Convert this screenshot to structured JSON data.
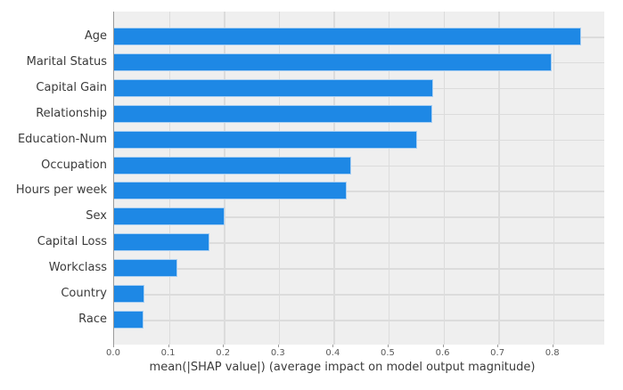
{
  "figure": {
    "background": "#ffffff",
    "plot_background": "#efefef",
    "grid_color": "#dcdcdc",
    "spine_color": "#9b9b9b",
    "bar_color": "#1e88e5",
    "bar_edge_color": "#a9cff2",
    "label_color": "#3b3b3b",
    "tick_color": "#595959"
  },
  "chart_data": {
    "type": "bar",
    "orientation": "horizontal",
    "title": "",
    "xlabel": "mean(|SHAP value|) (average impact on model output magnitude)",
    "ylabel": "",
    "categories": [
      "Age",
      "Marital Status",
      "Capital Gain",
      "Relationship",
      "Education-Num",
      "Occupation",
      "Hours per week",
      "Sex",
      "Capital Loss",
      "Workclass",
      "Country",
      "Race"
    ],
    "values": [
      0.85,
      0.797,
      0.582,
      0.58,
      0.552,
      0.432,
      0.423,
      0.201,
      0.173,
      0.116,
      0.055,
      0.053
    ],
    "xlim": [
      0,
      0.893
    ],
    "xticks": [
      0.0,
      0.1,
      0.2,
      0.3,
      0.4,
      0.5,
      0.6,
      0.7,
      0.8
    ],
    "xtick_labels": [
      "0.0",
      "0.1",
      "0.2",
      "0.3",
      "0.4",
      "0.5",
      "0.6",
      "0.7",
      "0.8"
    ],
    "grid": true,
    "legend": "none"
  }
}
